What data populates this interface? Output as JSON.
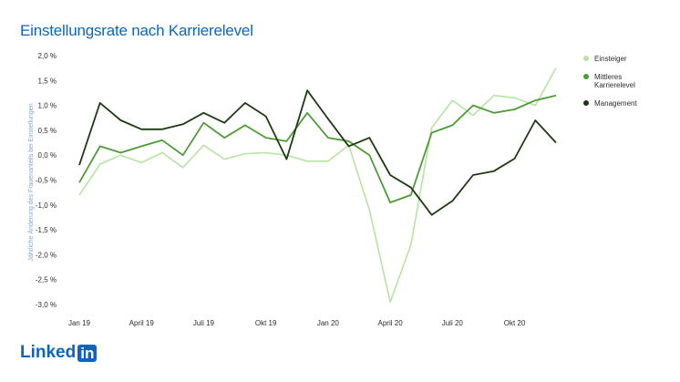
{
  "title": "Einstellungsrate nach Karrierelevel",
  "logo": {
    "text": "Linked",
    "badge": "in"
  },
  "legend": [
    {
      "label": "Einsteiger",
      "color": "#b7e4a3"
    },
    {
      "label": "Mittleres Karrierelevel",
      "color": "#4e9a35"
    },
    {
      "label": "Management",
      "color": "#1c3a12"
    }
  ],
  "chart_data": {
    "type": "line",
    "title": "Einstellungsrate nach Karrierelevel",
    "xlabel": "",
    "ylabel": "Jährliche Änderung des Frauenanteils bei Einstellungen",
    "x_tick_labels": [
      "Jan 19",
      "April 19",
      "Juli 19",
      "Okt 19",
      "Jan 20",
      "April 20",
      "Juli 20",
      "Okt 20"
    ],
    "y_tick_labels": [
      "2,0 %",
      "1,5 %",
      "1,0 %",
      "0,5 %",
      "0,0 %",
      "-0,5 %",
      "-1,0 %",
      "-1,5 %",
      "-2,0 %",
      "-2,5 %",
      "-3,0 %"
    ],
    "ylim": [
      -3.0,
      2.0
    ],
    "grid": false,
    "legend_position": "right",
    "series": [
      {
        "name": "Einsteiger",
        "color": "#b7e4a3",
        "values": [
          -0.8,
          -0.18,
          0.0,
          -0.15,
          0.05,
          -0.25,
          0.2,
          -0.08,
          0.03,
          0.05,
          0.0,
          -0.12,
          -0.12,
          0.2,
          -1.1,
          -2.95,
          -1.8,
          0.55,
          1.1,
          0.8,
          1.2,
          1.15,
          1.0,
          1.75
        ]
      },
      {
        "name": "Mittleres Karrierelevel",
        "color": "#4e9a35",
        "values": [
          -0.55,
          0.18,
          0.05,
          0.18,
          0.3,
          0.0,
          0.65,
          0.35,
          0.6,
          0.35,
          0.28,
          0.85,
          0.35,
          0.28,
          0.0,
          -0.95,
          -0.8,
          0.45,
          0.6,
          1.0,
          0.85,
          0.92,
          1.1,
          1.2
        ]
      },
      {
        "name": "Management",
        "color": "#1c3a12",
        "values": [
          -0.2,
          1.05,
          0.7,
          0.52,
          0.52,
          0.62,
          0.85,
          0.65,
          1.05,
          0.78,
          -0.08,
          1.3,
          0.73,
          0.18,
          0.35,
          -0.4,
          -0.65,
          -1.2,
          -0.92,
          -0.4,
          -0.32,
          -0.07,
          0.7,
          0.25
        ]
      }
    ]
  }
}
